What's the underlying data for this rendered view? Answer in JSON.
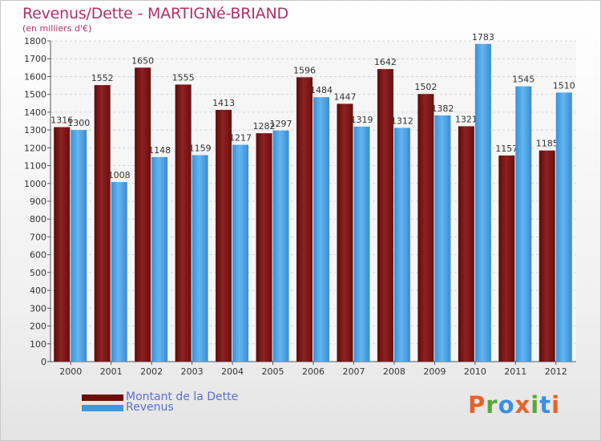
{
  "title": "Revenus/Dette - MARTIGNé-BRIAND",
  "subtitle": "(en milliers d'€)",
  "colors": {
    "debt": "#7a1414",
    "revenue": "#4aa3e4",
    "title": "#b0306a",
    "legend_text": "#5a6fd6"
  },
  "legend": [
    {
      "label": "Montant de la Dette",
      "color": "#6e0d0d"
    },
    {
      "label": "Revenus",
      "color": "#3a9ae0"
    }
  ],
  "logo": {
    "text": "Proxiti",
    "colors": [
      "#e8622a",
      "#5aa832",
      "#3d8ee0",
      "#e8622a",
      "#5aa832",
      "#3d8ee0",
      "#e8622a"
    ]
  },
  "chart_data": {
    "type": "bar",
    "title": "Revenus/Dette - MARTIGNé-BRIAND",
    "subtitle": "(en milliers d'€)",
    "categories": [
      "2000",
      "2001",
      "2002",
      "2003",
      "2004",
      "2005",
      "2006",
      "2007",
      "2008",
      "2009",
      "2010",
      "2011",
      "2012"
    ],
    "series": [
      {
        "name": "Montant de la Dette",
        "values": [
          1316,
          1552,
          1650,
          1555,
          1413,
          1282,
          1596,
          1447,
          1642,
          1502,
          1321,
          1157,
          1185
        ]
      },
      {
        "name": "Revenus",
        "values": [
          1300,
          1008,
          1148,
          1159,
          1217,
          1297,
          1484,
          1319,
          1312,
          1382,
          1783,
          1545,
          1510
        ]
      }
    ],
    "ylim": [
      0,
      1800
    ],
    "ytick_step": 100,
    "grid": true,
    "legend_position": "bottom-left"
  }
}
